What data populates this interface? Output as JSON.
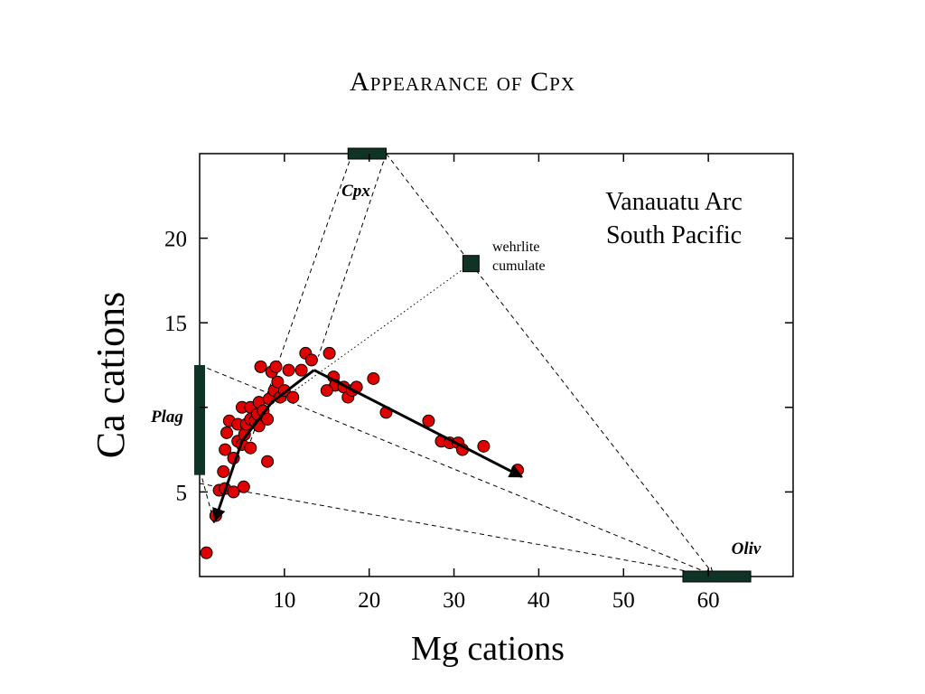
{
  "title": "Appearance of Cpx",
  "chart_data": {
    "type": "scatter",
    "title": "Appearance of Cpx",
    "xlabel": "Mg cations",
    "ylabel": "Ca cations",
    "xlim": [
      0,
      70
    ],
    "ylim": [
      0,
      25
    ],
    "xticks": [
      10,
      20,
      30,
      40,
      50,
      60
    ],
    "yticks": [
      5,
      15,
      20
    ],
    "grid": false,
    "series": [
      {
        "marker": "circle",
        "color": "#e00000",
        "points": [
          [
            0.8,
            1.4
          ],
          [
            1.9,
            3.6
          ],
          [
            2.3,
            5.1
          ],
          [
            2.8,
            6.2
          ],
          [
            3.0,
            5.2
          ],
          [
            3.0,
            7.5
          ],
          [
            3.2,
            8.5
          ],
          [
            3.5,
            9.2
          ],
          [
            4.0,
            5.0
          ],
          [
            4.0,
            7.0
          ],
          [
            4.5,
            8.0
          ],
          [
            4.5,
            9.0
          ],
          [
            5.0,
            7.8
          ],
          [
            5.0,
            10.0
          ],
          [
            5.2,
            5.3
          ],
          [
            5.3,
            8.4
          ],
          [
            5.5,
            9.0
          ],
          [
            6.0,
            7.6
          ],
          [
            6.0,
            9.3
          ],
          [
            6.0,
            10.0
          ],
          [
            6.5,
            9.2
          ],
          [
            6.8,
            9.6
          ],
          [
            7.0,
            8.9
          ],
          [
            7.0,
            10.3
          ],
          [
            7.2,
            12.4
          ],
          [
            7.5,
            9.8
          ],
          [
            8.0,
            9.3
          ],
          [
            8.2,
            10.5
          ],
          [
            8.5,
            12.1
          ],
          [
            8.0,
            6.8
          ],
          [
            8.8,
            11.0
          ],
          [
            9.0,
            12.4
          ],
          [
            9.2,
            11.5
          ],
          [
            9.5,
            10.6
          ],
          [
            10.0,
            11.0
          ],
          [
            10.5,
            12.2
          ],
          [
            11.0,
            10.6
          ],
          [
            12.0,
            12.2
          ],
          [
            12.5,
            13.2
          ],
          [
            13.2,
            12.8
          ],
          [
            15.3,
            13.2
          ],
          [
            15.8,
            11.8
          ],
          [
            16.0,
            11.3
          ],
          [
            15.0,
            11.0
          ],
          [
            17.0,
            11.2
          ],
          [
            17.5,
            10.6
          ],
          [
            18.0,
            11.0
          ],
          [
            18.5,
            11.2
          ],
          [
            20.5,
            11.7
          ],
          [
            22.0,
            9.7
          ],
          [
            27.0,
            9.2
          ],
          [
            28.5,
            8.0
          ],
          [
            29.5,
            7.9
          ],
          [
            30.5,
            7.9
          ],
          [
            31.0,
            7.5
          ],
          [
            33.5,
            7.7
          ],
          [
            37.5,
            6.3
          ]
        ]
      }
    ],
    "trend_lines": [
      {
        "style": "solid-arrow",
        "points": [
          [
            13.5,
            12.2
          ],
          [
            38.0,
            5.9
          ]
        ]
      },
      {
        "style": "solid-arrow",
        "points": [
          [
            13.5,
            12.2
          ],
          [
            8.5,
            10.3
          ],
          [
            5.0,
            8.0
          ],
          [
            1.8,
            3.3
          ]
        ]
      }
    ],
    "tie_lines": [
      {
        "style": "dashed",
        "points": [
          [
            0,
            12.5
          ],
          [
            61.0,
            0
          ]
        ]
      },
      {
        "style": "dashed",
        "points": [
          [
            0,
            5.5
          ],
          [
            61.0,
            0
          ]
        ]
      },
      {
        "style": "dashed",
        "points": [
          [
            18.0,
            25.0
          ],
          [
            6.0,
            8.0
          ]
        ]
      },
      {
        "style": "dashed",
        "points": [
          [
            22.0,
            25.0
          ],
          [
            14.0,
            13.0
          ]
        ]
      },
      {
        "style": "dashed",
        "points": [
          [
            22.0,
            25.0
          ],
          [
            32.0,
            18.5
          ]
        ]
      },
      {
        "style": "dashed-arrow",
        "points": [
          [
            32.0,
            18.5
          ],
          [
            60.5,
            0.2
          ]
        ]
      },
      {
        "style": "dotted",
        "points": [
          [
            32.0,
            18.5
          ],
          [
            9.0,
            10.2
          ]
        ]
      },
      {
        "style": "dashed-arrow",
        "points": [
          [
            0.3,
            5.8
          ],
          [
            1.7,
            3.2
          ]
        ]
      }
    ],
    "endmembers": [
      {
        "label": "Cpx",
        "shape": "hbar",
        "x": [
          17.5,
          22.0
        ],
        "y": 25.0
      },
      {
        "label": "Plag",
        "shape": "vbar",
        "x": 0,
        "y": [
          6.0,
          12.5
        ]
      },
      {
        "label": "Oliv",
        "shape": "hbar",
        "x": [
          57.0,
          65.0
        ],
        "y": 0
      },
      {
        "label": "",
        "shape": "square",
        "x": 32.0,
        "y": 18.5
      }
    ],
    "annotations": [
      "Vanauatu Arc",
      "South Pacific",
      "wehrlite",
      "cumulate"
    ],
    "endmember_color": "#0f3325"
  }
}
